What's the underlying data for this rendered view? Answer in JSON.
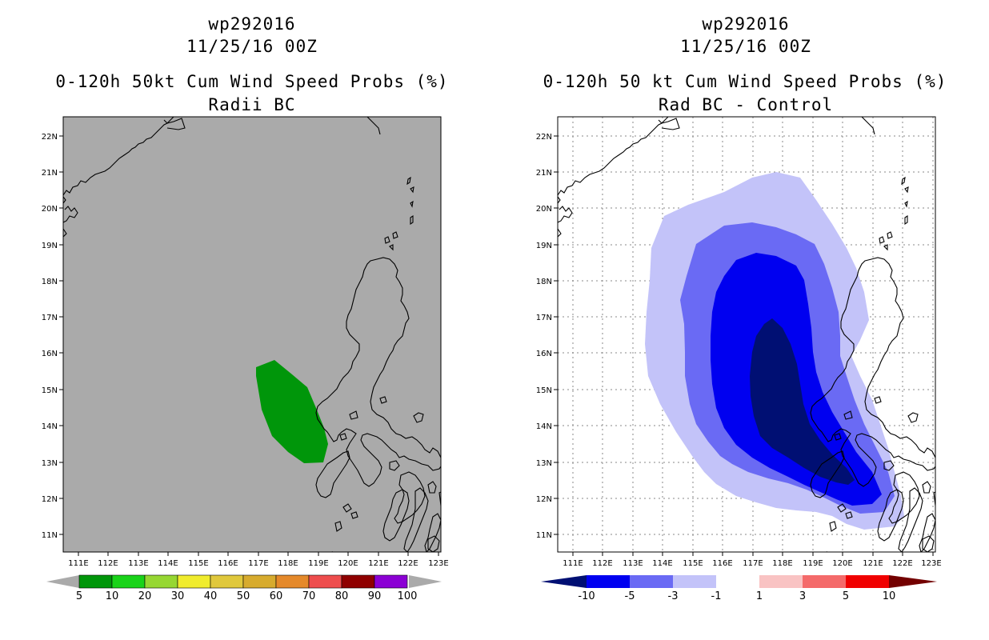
{
  "left": {
    "storm_id": "wp292016",
    "datetime": "11/25/16 00Z",
    "title": "0-120h 50kt Cum Wind Speed Probs (%)",
    "subtitle": "Radii BC",
    "lon_labels": [
      "111E",
      "112E",
      "113E",
      "114E",
      "115E",
      "116E",
      "117E",
      "118E",
      "119E",
      "120E",
      "121E",
      "122E",
      "123E"
    ],
    "lat_labels": [
      "22N",
      "21N",
      "20N",
      "19N",
      "18N",
      "17N",
      "16N",
      "15N",
      "14N",
      "13N",
      "12N",
      "11N"
    ],
    "colorbar_labels": [
      "5",
      "10",
      "20",
      "30",
      "40",
      "50",
      "60",
      "70",
      "80",
      "90",
      "100"
    ],
    "colorbar_colors": [
      "#00960a",
      "#19d319",
      "#96d732",
      "#f0ec2d",
      "#e0c83c",
      "#d7ab2e",
      "#e5892a",
      "#ee4d4d",
      "#8f0000",
      "#8b00d4"
    ],
    "background_color": "#aaaaaa",
    "probability_area": {
      "value": "5-10",
      "color": "#00960a"
    }
  },
  "right": {
    "storm_id": "wp292016",
    "datetime": "11/25/16 00Z",
    "title": "0-120h 50 kt Cum Wind Speed Probs (%)",
    "subtitle": "Rad BC - Control",
    "lon_labels": [
      "111E",
      "112E",
      "113E",
      "114E",
      "115E",
      "116E",
      "117E",
      "118E",
      "119E",
      "120E",
      "121E",
      "122E",
      "123E"
    ],
    "lat_labels": [
      "22N",
      "21N",
      "20N",
      "19N",
      "18N",
      "17N",
      "16N",
      "15N",
      "14N",
      "13N",
      "12N",
      "11N"
    ],
    "colorbar_labels": [
      "-10",
      "-5",
      "-3",
      "-1",
      "1",
      "3",
      "5",
      "10"
    ],
    "colorbar_colors": [
      "#000f73",
      "#0000f0",
      "#6a6af4",
      "#c3c3f9",
      "#ffffff",
      "#f9c3c3",
      "#f46a6a",
      "#f00000",
      "#730000"
    ],
    "difference_levels": [
      {
        "range": "-1 to -3",
        "color": "#c3c3f9"
      },
      {
        "range": "-3 to -5",
        "color": "#6a6af4"
      },
      {
        "range": "-5 to -10",
        "color": "#0000f0"
      },
      {
        "range": "< -10",
        "color": "#000f73"
      }
    ]
  }
}
